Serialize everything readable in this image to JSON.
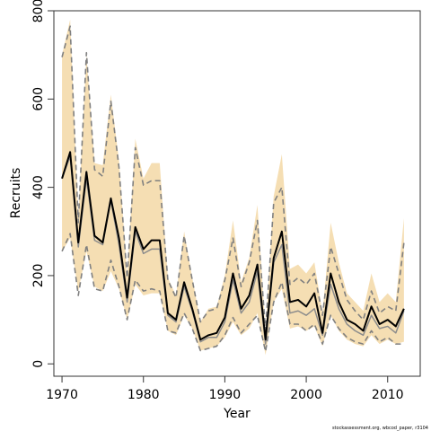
{
  "chart_data": {
    "type": "line",
    "xlabel": "Year",
    "ylabel": "Recruits",
    "xlim": [
      1969,
      2014
    ],
    "ylim": [
      -28,
      800
    ],
    "xticks": [
      1970,
      1980,
      1990,
      2000,
      2010
    ],
    "yticks": [
      0,
      200,
      400,
      600,
      800
    ],
    "grid": false,
    "colors": {
      "band": "#f5deb3",
      "estimate": "#000000",
      "median": "#8c8c8c",
      "interval": "#808080"
    },
    "x": [
      1970,
      1971,
      1972,
      1973,
      1974,
      1975,
      1976,
      1977,
      1978,
      1979,
      1980,
      1981,
      1982,
      1983,
      1984,
      1985,
      1986,
      1987,
      1988,
      1989,
      1990,
      1991,
      1992,
      1993,
      1994,
      1995,
      1996,
      1997,
      1998,
      1999,
      2000,
      2001,
      2002,
      2003,
      2004,
      2005,
      2006,
      2007,
      2008,
      2009,
      2010,
      2011,
      2012
    ],
    "series": [
      {
        "role": "band_upper",
        "values": [
          700,
          780,
          330,
          700,
          455,
          450,
          610,
          460,
          200,
          510,
          420,
          455,
          455,
          195,
          155,
          300,
          195,
          95,
          125,
          130,
          200,
          325,
          185,
          240,
          360,
          75,
          380,
          475,
          215,
          225,
          205,
          230,
          115,
          320,
          230,
          160,
          140,
          120,
          205,
          140,
          160,
          140,
          330
        ]
      },
      {
        "role": "band_lower",
        "values": [
          255,
          285,
          165,
          255,
          175,
          165,
          210,
          170,
          100,
          180,
          155,
          160,
          160,
          75,
          65,
          110,
          80,
          30,
          35,
          40,
          60,
          95,
          65,
          80,
          115,
          20,
          140,
          170,
          80,
          85,
          75,
          85,
          40,
          110,
          75,
          55,
          45,
          40,
          65,
          45,
          55,
          45,
          50
        ]
      },
      {
        "role": "upper_interval",
        "values": [
          695,
          765,
          320,
          705,
          440,
          425,
          595,
          445,
          195,
          490,
          405,
          415,
          415,
          190,
          150,
          290,
          190,
          95,
          120,
          125,
          190,
          285,
          175,
          230,
          325,
          75,
          365,
          400,
          180,
          195,
          180,
          205,
          110,
          265,
          205,
          145,
          120,
          100,
          165,
          115,
          130,
          120,
          275
        ]
      },
      {
        "role": "lower_interval",
        "values": [
          255,
          295,
          155,
          270,
          170,
          165,
          235,
          175,
          100,
          190,
          165,
          170,
          165,
          75,
          70,
          115,
          80,
          30,
          35,
          40,
          65,
          105,
          70,
          90,
          110,
          28,
          140,
          185,
          90,
          90,
          75,
          90,
          45,
          110,
          80,
          60,
          50,
          45,
          75,
          50,
          60,
          45,
          45
        ]
      },
      {
        "role": "median",
        "values": [
          420,
          470,
          265,
          420,
          280,
          270,
          370,
          270,
          140,
          300,
          250,
          260,
          260,
          110,
          95,
          175,
          120,
          50,
          60,
          60,
          95,
          190,
          115,
          140,
          210,
          45,
          230,
          270,
          115,
          120,
          110,
          125,
          65,
          180,
          125,
          90,
          75,
          65,
          110,
          80,
          85,
          70,
          120
        ]
      },
      {
        "role": "estimate",
        "values": [
          420,
          480,
          275,
          435,
          290,
          275,
          375,
          285,
          150,
          310,
          260,
          280,
          280,
          115,
          100,
          185,
          125,
          55,
          65,
          70,
          105,
          205,
          125,
          155,
          225,
          55,
          240,
          300,
          140,
          145,
          130,
          160,
          70,
          205,
          140,
          100,
          90,
          75,
          130,
          90,
          100,
          85,
          125
        ]
      }
    ],
    "annotation": "stockassessment.org, wbcod_paper, r3104"
  }
}
